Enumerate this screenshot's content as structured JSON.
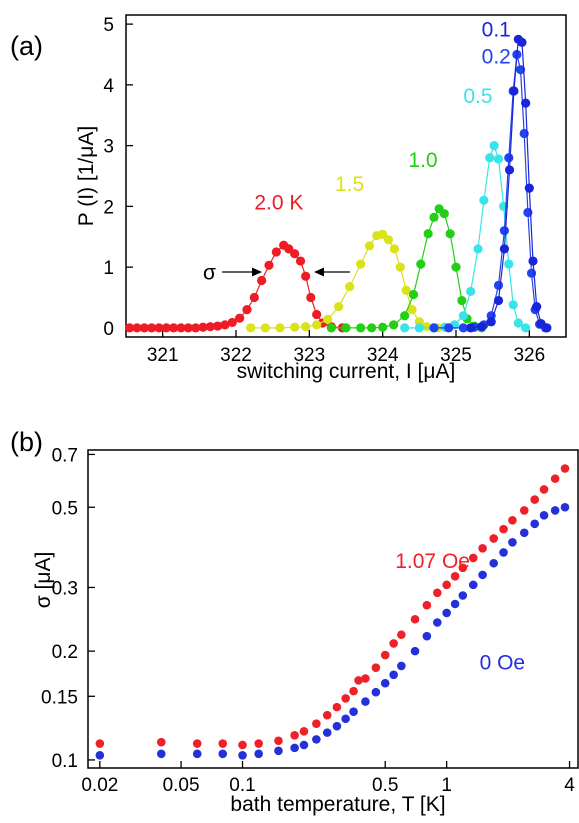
{
  "chart_data": [
    {
      "panel_label": "(a)",
      "type": "line",
      "xlabel": "switching current, I [μA]",
      "ylabel": "P (I) [1/μA]",
      "xlim": [
        320.5,
        326.5
      ],
      "ylim": [
        -0.15,
        5.15
      ],
      "xticks": [
        321,
        322,
        323,
        324,
        325,
        326
      ],
      "yticks": [
        0,
        1,
        2,
        3,
        4,
        5
      ],
      "grid": false,
      "legend": "none",
      "series": [
        {
          "name": "2.0 K",
          "color": "#ee1c24",
          "points": [
            [
              320.55,
              0
            ],
            [
              320.65,
              0
            ],
            [
              320.75,
              0
            ],
            [
              320.85,
              0
            ],
            [
              320.95,
              0
            ],
            [
              321.05,
              0
            ],
            [
              321.15,
              0
            ],
            [
              321.25,
              0
            ],
            [
              321.35,
              0
            ],
            [
              321.45,
              0
            ],
            [
              321.55,
              0.01
            ],
            [
              321.65,
              0.02
            ],
            [
              321.75,
              0.03
            ],
            [
              321.85,
              0.05
            ],
            [
              321.95,
              0.09
            ],
            [
              322.05,
              0.16
            ],
            [
              322.15,
              0.3
            ],
            [
              322.25,
              0.5
            ],
            [
              322.35,
              0.78
            ],
            [
              322.45,
              1.03
            ],
            [
              322.55,
              1.25
            ],
            [
              322.65,
              1.36
            ],
            [
              322.72,
              1.3
            ],
            [
              322.8,
              1.22
            ],
            [
              322.88,
              1.1
            ],
            [
              322.95,
              0.85
            ],
            [
              323.02,
              0.5
            ],
            [
              323.1,
              0.22
            ],
            [
              323.18,
              0.08
            ],
            [
              323.3,
              0.02
            ],
            [
              323.45,
              0
            ]
          ]
        },
        {
          "name": "1.5",
          "color": "#d9e21a",
          "points": [
            [
              322.2,
              0
            ],
            [
              322.4,
              0
            ],
            [
              322.6,
              0
            ],
            [
              322.8,
              0.01
            ],
            [
              322.95,
              0.02
            ],
            [
              323.1,
              0.05
            ],
            [
              323.25,
              0.14
            ],
            [
              323.4,
              0.35
            ],
            [
              323.55,
              0.68
            ],
            [
              323.7,
              1.05
            ],
            [
              323.82,
              1.35
            ],
            [
              323.92,
              1.52
            ],
            [
              324.0,
              1.54
            ],
            [
              324.08,
              1.45
            ],
            [
              324.16,
              1.3
            ],
            [
              324.24,
              1.0
            ],
            [
              324.32,
              0.62
            ],
            [
              324.4,
              0.3
            ],
            [
              324.5,
              0.1
            ],
            [
              324.6,
              0.02
            ],
            [
              324.75,
              0
            ]
          ]
        },
        {
          "name": "1.0",
          "color": "#21d014",
          "points": [
            [
              323.3,
              0
            ],
            [
              323.5,
              0
            ],
            [
              323.7,
              0
            ],
            [
              323.85,
              0
            ],
            [
              324.0,
              0.01
            ],
            [
              324.15,
              0.05
            ],
            [
              324.3,
              0.2
            ],
            [
              324.42,
              0.55
            ],
            [
              324.52,
              1.05
            ],
            [
              324.62,
              1.55
            ],
            [
              324.7,
              1.82
            ],
            [
              324.77,
              1.96
            ],
            [
              324.84,
              1.88
            ],
            [
              324.92,
              1.55
            ],
            [
              325.0,
              1.0
            ],
            [
              325.08,
              0.45
            ],
            [
              325.15,
              0.15
            ],
            [
              325.25,
              0.03
            ],
            [
              325.35,
              0
            ]
          ]
        },
        {
          "name": "0.5",
          "color": "#38e4ea",
          "points": [
            [
              324.3,
              0
            ],
            [
              324.5,
              0
            ],
            [
              324.7,
              0
            ],
            [
              324.85,
              0.01
            ],
            [
              324.98,
              0.05
            ],
            [
              325.1,
              0.2
            ],
            [
              325.2,
              0.6
            ],
            [
              325.3,
              1.3
            ],
            [
              325.38,
              2.1
            ],
            [
              325.46,
              2.8
            ],
            [
              325.52,
              3.0
            ],
            [
              325.58,
              2.78
            ],
            [
              325.65,
              2.0
            ],
            [
              325.72,
              1.05
            ],
            [
              325.78,
              0.38
            ],
            [
              325.85,
              0.08
            ],
            [
              325.95,
              0
            ]
          ]
        },
        {
          "name": "0.2",
          "color": "#2244ee",
          "points": [
            [
              324.7,
              0
            ],
            [
              324.9,
              0
            ],
            [
              325.1,
              0
            ],
            [
              325.25,
              0.01
            ],
            [
              325.38,
              0.05
            ],
            [
              325.48,
              0.2
            ],
            [
              325.58,
              0.7
            ],
            [
              325.66,
              1.6
            ],
            [
              325.72,
              2.8
            ],
            [
              325.78,
              3.9
            ],
            [
              325.83,
              4.5
            ],
            [
              325.88,
              4.25
            ],
            [
              325.93,
              3.2
            ],
            [
              325.98,
              1.9
            ],
            [
              326.03,
              0.9
            ],
            [
              326.08,
              0.3
            ],
            [
              326.14,
              0.06
            ],
            [
              326.22,
              0
            ]
          ]
        },
        {
          "name": "0.1",
          "color": "#1a24d8",
          "points": [
            [
              325.2,
              0
            ],
            [
              325.35,
              0.02
            ],
            [
              325.48,
              0.1
            ],
            [
              325.58,
              0.45
            ],
            [
              325.66,
              1.3
            ],
            [
              325.73,
              2.6
            ],
            [
              325.79,
              3.9
            ],
            [
              325.85,
              4.75
            ],
            [
              325.9,
              4.7
            ],
            [
              325.95,
              3.7
            ],
            [
              326.0,
              2.3
            ],
            [
              326.05,
              1.1
            ],
            [
              326.1,
              0.35
            ],
            [
              326.16,
              0.07
            ],
            [
              326.24,
              0
            ]
          ]
        }
      ],
      "annotations": [
        {
          "text": "2.0 K",
          "color": "#ee1c24",
          "x": 322.25,
          "y": 1.95
        },
        {
          "text": "1.5",
          "color": "#d9e21a",
          "x": 323.35,
          "y": 2.25
        },
        {
          "text": "1.0",
          "color": "#21d014",
          "x": 324.35,
          "y": 2.65
        },
        {
          "text": "0.5",
          "color": "#38e4ea",
          "x": 325.1,
          "y": 3.7
        },
        {
          "text": "0.2",
          "color": "#2244ee",
          "x": 325.35,
          "y": 4.35
        },
        {
          "text": "0.1",
          "color": "#1a24d8",
          "x": 325.35,
          "y": 4.8
        },
        {
          "text": "σ",
          "color": "#000000",
          "x": 321.55,
          "y": 0.8
        }
      ],
      "sigma_arrows": {
        "y": 0.82,
        "left_tip": 322.3,
        "right_tip": 322.95
      }
    },
    {
      "panel_label": "(b)",
      "type": "scatter",
      "xlabel": "bath temperature, T  [K]",
      "ylabel": "σ  [μA]",
      "xscale": "log",
      "yscale": "log",
      "xlim": [
        0.0175,
        4.4
      ],
      "ylim": [
        0.095,
        0.72
      ],
      "xticks": [
        0.02,
        0.05,
        0.1,
        0.5,
        1,
        4
      ],
      "xtick_labels": [
        "0.02",
        "0.05",
        "0.1",
        "0.5",
        "1",
        "4"
      ],
      "yticks": [
        0.1,
        0.15,
        0.2,
        0.3,
        0.5,
        0.7
      ],
      "ytick_labels": [
        "0.1",
        "0.15",
        "0.2",
        "0.3",
        "0.5",
        "0.7"
      ],
      "grid": false,
      "legend": "none",
      "series": [
        {
          "name": "1.07 Oe",
          "color": "#ee2028",
          "points": [
            [
              0.02,
              0.111
            ],
            [
              0.04,
              0.112
            ],
            [
              0.06,
              0.111
            ],
            [
              0.08,
              0.111
            ],
            [
              0.1,
              0.11
            ],
            [
              0.12,
              0.111
            ],
            [
              0.15,
              0.113
            ],
            [
              0.18,
              0.117
            ],
            [
              0.2,
              0.12
            ],
            [
              0.23,
              0.126
            ],
            [
              0.26,
              0.133
            ],
            [
              0.29,
              0.14
            ],
            [
              0.32,
              0.148
            ],
            [
              0.35,
              0.155
            ],
            [
              0.37,
              0.166
            ],
            [
              0.4,
              0.168
            ],
            [
              0.45,
              0.18
            ],
            [
              0.5,
              0.195
            ],
            [
              0.55,
              0.21
            ],
            [
              0.6,
              0.222
            ],
            [
              0.7,
              0.245
            ],
            [
              0.8,
              0.268
            ],
            [
              0.9,
              0.29
            ],
            [
              1.0,
              0.305
            ],
            [
              1.1,
              0.322
            ],
            [
              1.2,
              0.34
            ],
            [
              1.35,
              0.362
            ],
            [
              1.5,
              0.385
            ],
            [
              1.7,
              0.41
            ],
            [
              1.9,
              0.435
            ],
            [
              2.1,
              0.46
            ],
            [
              2.4,
              0.49
            ],
            [
              2.7,
              0.525
            ],
            [
              3.0,
              0.56
            ],
            [
              3.4,
              0.6
            ],
            [
              3.8,
              0.64
            ]
          ]
        },
        {
          "name": "0 Oe",
          "color": "#2430d8",
          "points": [
            [
              0.02,
              0.103
            ],
            [
              0.04,
              0.104
            ],
            [
              0.06,
              0.104
            ],
            [
              0.08,
              0.104
            ],
            [
              0.1,
              0.103
            ],
            [
              0.12,
              0.104
            ],
            [
              0.15,
              0.106
            ],
            [
              0.18,
              0.108
            ],
            [
              0.2,
              0.11
            ],
            [
              0.23,
              0.114
            ],
            [
              0.26,
              0.119
            ],
            [
              0.29,
              0.124
            ],
            [
              0.32,
              0.13
            ],
            [
              0.35,
              0.136
            ],
            [
              0.4,
              0.145
            ],
            [
              0.45,
              0.154
            ],
            [
              0.5,
              0.163
            ],
            [
              0.55,
              0.172
            ],
            [
              0.6,
              0.182
            ],
            [
              0.7,
              0.2
            ],
            [
              0.8,
              0.22
            ],
            [
              0.9,
              0.24
            ],
            [
              1.0,
              0.255
            ],
            [
              1.1,
              0.27
            ],
            [
              1.2,
              0.285
            ],
            [
              1.35,
              0.305
            ],
            [
              1.5,
              0.325
            ],
            [
              1.7,
              0.35
            ],
            [
              1.9,
              0.375
            ],
            [
              2.1,
              0.4
            ],
            [
              2.4,
              0.425
            ],
            [
              2.7,
              0.45
            ],
            [
              3.0,
              0.475
            ],
            [
              3.4,
              0.49
            ],
            [
              3.8,
              0.5
            ]
          ]
        }
      ],
      "annotations": [
        {
          "text": "1.07 Oe",
          "color": "#ee2028",
          "x": 0.56,
          "y": 0.34
        },
        {
          "text": "0 Oe",
          "color": "#2430d8",
          "x": 1.45,
          "y": 0.178
        }
      ]
    }
  ]
}
